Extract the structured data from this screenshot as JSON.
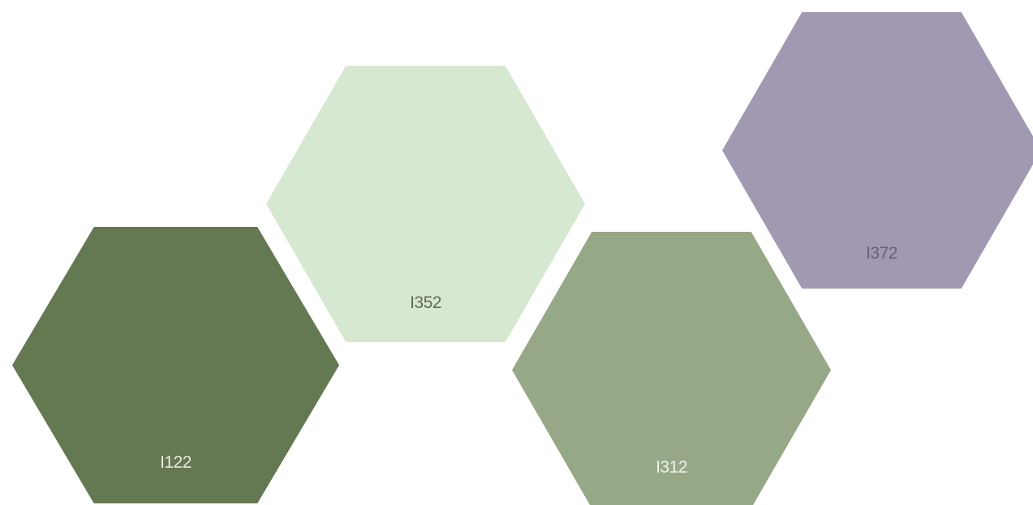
{
  "swatches": [
    {
      "code": "I122",
      "fill": "#647851",
      "text_color": "#e6ecdf",
      "icon": "hexagon-swatch"
    },
    {
      "code": "I352",
      "fill": "#d7e8d0",
      "text_color": "#5f6a5a",
      "icon": "hexagon-swatch"
    },
    {
      "code": "I312",
      "fill": "#97a886",
      "text_color": "#eef2ea",
      "icon": "hexagon-swatch"
    },
    {
      "code": "I372",
      "fill": "#a099b1",
      "text_color": "#67617a",
      "icon": "hexagon-swatch"
    }
  ]
}
